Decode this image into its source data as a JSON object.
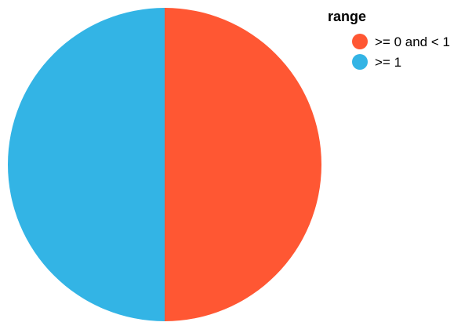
{
  "chart_data": {
    "type": "pie",
    "legend_title": "range",
    "legend_position": "right",
    "categories": [
      ">= 0 and < 1",
      ">= 1"
    ],
    "values": [
      50,
      50
    ],
    "colors": [
      "#ff5733",
      "#33b4e5"
    ]
  }
}
